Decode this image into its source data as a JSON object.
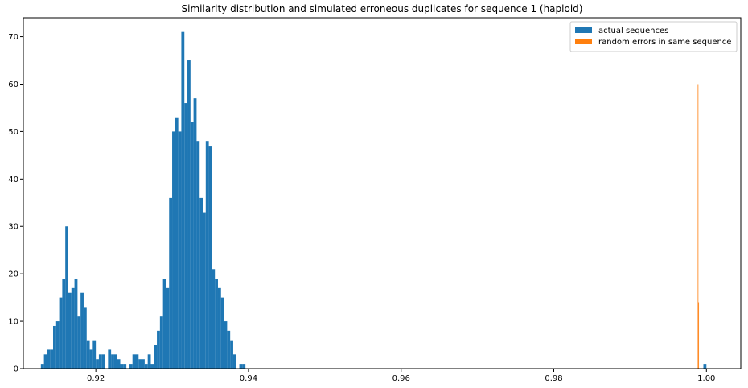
{
  "chart_data": {
    "type": "bar",
    "title": "Similarity distribution and simulated erroneous duplicates for sequence 1 (haploid)",
    "xlabel": "",
    "ylabel": "",
    "xlim": [
      0.9105,
      1.0045
    ],
    "ylim": [
      0,
      74
    ],
    "x_ticks": [
      0.92,
      0.94,
      0.96,
      0.98,
      1.0
    ],
    "x_tick_labels": [
      "0.92",
      "0.94",
      "0.96",
      "0.98",
      "1.00"
    ],
    "y_ticks": [
      0,
      10,
      20,
      30,
      40,
      50,
      60,
      70
    ],
    "y_tick_labels": [
      "0",
      "10",
      "20",
      "30",
      "40",
      "50",
      "60",
      "70"
    ],
    "grid": false,
    "legend_position": "top-right",
    "series": [
      {
        "name": "actual sequences",
        "color": "#1f77b4",
        "bin_width": 0.0004,
        "bin_starts": [
          0.9128,
          0.9132,
          0.9136,
          0.914,
          0.9144,
          0.9148,
          0.9152,
          0.9156,
          0.916,
          0.9164,
          0.9168,
          0.9172,
          0.9176,
          0.918,
          0.9184,
          0.9188,
          0.9192,
          0.9196,
          0.92,
          0.9204,
          0.9208,
          0.9212,
          0.9216,
          0.922,
          0.9224,
          0.9228,
          0.9232,
          0.9236,
          0.924,
          0.9244,
          0.9248,
          0.9252,
          0.9256,
          0.926,
          0.9264,
          0.9268,
          0.9272,
          0.9276,
          0.928,
          0.9284,
          0.9288,
          0.9292,
          0.9296,
          0.93,
          0.9304,
          0.9308,
          0.9312,
          0.9316,
          0.932,
          0.9324,
          0.9328,
          0.9332,
          0.9336,
          0.934,
          0.9344,
          0.9348,
          0.9352,
          0.9356,
          0.936,
          0.9364,
          0.9368,
          0.9372,
          0.9376,
          0.938,
          0.9384,
          0.9388,
          0.9392,
          0.9396,
          0.94,
          0.9404,
          0.9408,
          0.9412,
          0.9416,
          0.942,
          0.9996
        ],
        "counts": [
          1,
          3,
          4,
          4,
          9,
          10,
          15,
          19,
          30,
          16,
          17,
          19,
          11,
          16,
          13,
          6,
          4,
          6,
          2,
          3,
          3,
          0,
          4,
          3,
          3,
          2,
          1,
          1,
          0,
          1,
          3,
          3,
          2,
          2,
          1,
          3,
          1,
          5,
          8,
          11,
          19,
          17,
          36,
          50,
          53,
          50,
          71,
          56,
          65,
          52,
          57,
          48,
          36,
          33,
          48,
          47,
          21,
          19,
          17,
          15,
          10,
          8,
          6,
          3,
          0,
          1,
          1,
          0,
          0,
          0,
          0,
          0,
          0,
          0,
          1
        ]
      },
      {
        "name": "random errors in same sequence",
        "color": "#ff7f0e",
        "bin_width": 8e-05,
        "bin_starts": [
          0.99886,
          0.99894
        ],
        "counts": [
          60,
          14
        ]
      }
    ]
  }
}
